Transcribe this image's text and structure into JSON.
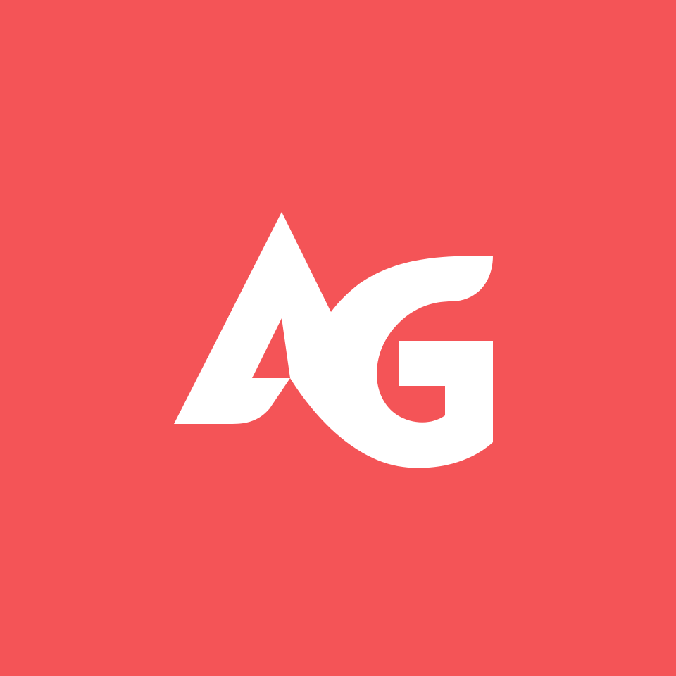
{
  "logo": {
    "lettering": "AG",
    "mark_name": "ag-monogram-logo"
  },
  "colors": {
    "background": "#f45457",
    "mark": "#ffffff"
  }
}
